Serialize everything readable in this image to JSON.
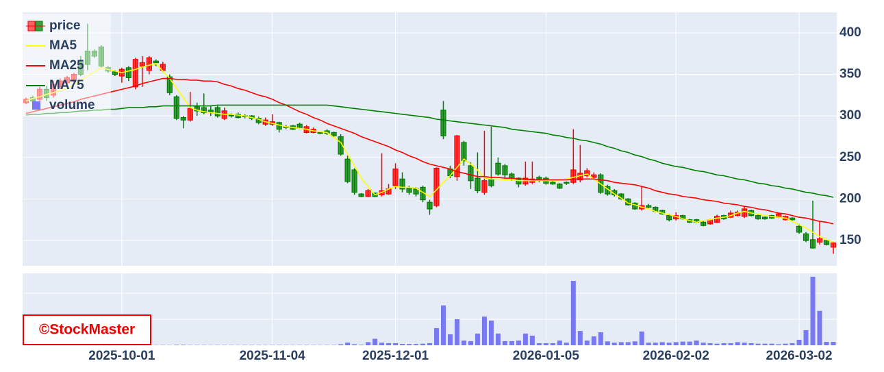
{
  "chart_data": {
    "type": "candlestick",
    "name": "price",
    "categories": [
      null,
      null,
      null,
      null,
      null,
      null,
      null,
      null,
      null,
      null,
      null,
      null,
      null,
      null,
      "2025-10-01",
      null,
      null,
      null,
      null,
      null,
      null,
      null,
      null,
      null,
      null,
      null,
      null,
      null,
      null,
      null,
      null,
      null,
      null,
      null,
      null,
      null,
      "2025-11-04",
      null,
      null,
      null,
      null,
      null,
      null,
      null,
      null,
      null,
      null,
      null,
      null,
      null,
      null,
      null,
      null,
      null,
      "2025-12-01",
      null,
      null,
      null,
      null,
      null,
      null,
      null,
      null,
      null,
      null,
      null,
      null,
      null,
      null,
      null,
      null,
      null,
      null,
      null,
      null,
      null,
      "2026-01-05",
      null,
      null,
      null,
      null,
      null,
      null,
      null,
      null,
      null,
      null,
      null,
      null,
      null,
      null,
      null,
      null,
      null,
      null,
      "2026-02-02",
      null,
      null,
      null,
      null,
      null,
      null,
      null,
      null,
      null,
      null,
      null,
      null,
      null,
      null,
      null,
      null,
      null,
      "2026-03-02",
      null,
      null,
      null,
      null,
      null
    ],
    "open": [
      316,
      322,
      320,
      332,
      325,
      335,
      340,
      343,
      367,
      378,
      378,
      383,
      358,
      353,
      348,
      358,
      335,
      360,
      355,
      366,
      355,
      347,
      323,
      298,
      295,
      311,
      310,
      307,
      310,
      297,
      301,
      302,
      300,
      300,
      297,
      290,
      290,
      292,
      287,
      288,
      290,
      280,
      280,
      280,
      282,
      280,
      275,
      248,
      235,
      206,
      203,
      207,
      205,
      206,
      216,
      224,
      213,
      212,
      214,
      196,
      192,
      307,
      236,
      227,
      268,
      240,
      225,
      208,
      224,
      243,
      240,
      230,
      225,
      218,
      220,
      226,
      225,
      220,
      218,
      220,
      220,
      223,
      228,
      226,
      229,
      215,
      210,
      206,
      200,
      195,
      188,
      192,
      190,
      186,
      180,
      176,
      180,
      175,
      175,
      172,
      170,
      172,
      180,
      178,
      180,
      179,
      186,
      180,
      178,
      180,
      178,
      175,
      177,
      167,
      158,
      151,
      148,
      150,
      142
    ],
    "high": [
      322,
      324,
      335,
      336,
      342,
      345,
      348,
      352,
      372,
      411,
      380,
      385,
      360,
      355,
      358,
      360,
      370,
      372,
      372,
      368,
      365,
      350,
      325,
      300,
      329,
      316,
      327,
      312,
      312,
      310,
      303,
      304,
      302,
      301,
      299,
      298,
      302,
      293,
      289,
      289,
      292,
      289,
      286,
      281,
      284,
      281,
      278,
      252,
      237,
      207,
      212,
      208,
      255,
      218,
      243,
      232,
      216,
      214,
      216,
      199,
      238,
      318,
      240,
      277,
      270,
      244,
      256,
      282,
      287,
      250,
      242,
      232,
      226,
      245,
      245,
      228,
      227,
      222,
      219,
      221,
      284,
      265,
      237,
      232,
      231,
      217,
      212,
      207,
      201,
      196,
      216,
      194,
      191,
      187,
      182,
      184,
      181,
      176,
      176,
      174,
      176,
      181,
      181,
      186,
      186,
      191,
      187,
      181,
      179,
      181,
      183,
      180,
      178,
      170,
      160,
      198,
      173,
      151,
      148
    ],
    "low": [
      314,
      316,
      318,
      318,
      322,
      333,
      338,
      340,
      348,
      355,
      370,
      358,
      352,
      348,
      340,
      342,
      332,
      335,
      350,
      360,
      353,
      325,
      295,
      285,
      293,
      300,
      302,
      300,
      298,
      295,
      298,
      297,
      297,
      295,
      290,
      288,
      288,
      280,
      284,
      283,
      284,
      279,
      279,
      278,
      277,
      275,
      252,
      219,
      205,
      202,
      202,
      202,
      203,
      205,
      212,
      208,
      205,
      203,
      196,
      181,
      190,
      272,
      225,
      222,
      240,
      212,
      207,
      205,
      214,
      228,
      225,
      222,
      214,
      216,
      218,
      220,
      217,
      217,
      212,
      217,
      218,
      220,
      226,
      224,
      206,
      204,
      203,
      199,
      192,
      187,
      186,
      189,
      184,
      181,
      173,
      174,
      175,
      171,
      171,
      167,
      169,
      171,
      175,
      177,
      179,
      177,
      179,
      175,
      175,
      176,
      177,
      174,
      174,
      158,
      148,
      140,
      145,
      144,
      134
    ],
    "close": [
      320,
      318,
      332,
      322,
      338,
      342,
      346,
      350,
      350,
      362,
      372,
      360,
      354,
      350,
      356,
      346,
      368,
      364,
      370,
      364,
      362,
      328,
      297,
      295,
      309,
      306,
      304,
      305,
      300,
      306,
      300,
      298,
      299,
      297,
      292,
      295,
      293,
      284,
      286,
      284,
      285,
      287,
      284,
      279,
      279,
      276,
      254,
      221,
      208,
      203,
      210,
      203,
      210,
      212,
      236,
      212,
      208,
      206,
      199,
      188,
      237,
      276,
      228,
      276,
      246,
      222,
      210,
      222,
      216,
      230,
      229,
      225,
      218,
      225,
      224,
      222,
      219,
      218,
      213,
      219,
      235,
      231,
      234,
      229,
      208,
      206,
      205,
      200,
      193,
      188,
      192,
      190,
      185,
      182,
      175,
      180,
      176,
      172,
      172,
      168,
      175,
      179,
      176,
      183,
      184,
      188,
      180,
      176,
      176,
      177,
      182,
      179,
      175,
      160,
      150,
      141,
      152,
      145,
      147
    ],
    "increasing_color": "#ff0000",
    "decreasing_color": "#008000",
    "ylim": [
      119.5,
      424.7
    ],
    "yticks": [
      150,
      200,
      250,
      300,
      350,
      400
    ],
    "grid": true,
    "legend": "top-left",
    "series": [
      {
        "name": "MA5",
        "color": "#ffff00",
        "values": [
          318,
          321,
          323,
          326,
          328,
          331,
          333,
          338,
          343,
          348,
          353,
          358,
          356,
          354,
          352,
          354,
          356,
          359,
          361,
          363,
          354,
          345,
          333,
          322,
          310,
          307,
          305,
          304,
          303,
          302,
          302,
          301,
          300,
          298,
          296,
          293,
          291,
          289,
          287,
          286,
          285,
          284,
          282,
          281,
          280,
          274,
          268,
          254,
          240,
          225,
          215,
          205,
          208,
          212,
          215,
          214,
          214,
          213,
          208,
          203,
          211,
          220,
          228,
          238,
          248,
          242,
          235,
          225,
          224,
          224,
          223,
          223,
          222,
          222,
          222,
          222,
          222,
          222,
          222,
          224,
          226,
          228,
          230,
          224,
          218,
          212,
          206,
          201,
          195,
          193,
          190,
          188,
          185,
          183,
          181,
          179,
          176,
          174,
          172,
          174,
          175,
          177,
          178,
          180,
          183,
          185,
          183,
          182,
          180,
          179,
          178,
          177,
          173,
          169,
          165,
          160,
          155,
          151,
          148
        ]
      },
      {
        "name": "MA25",
        "color": "#ff0000",
        "values": [
          303,
          305,
          307,
          309,
          311,
          313,
          315,
          317,
          320,
          322,
          324,
          326,
          328,
          330,
          332,
          334,
          336,
          339,
          341,
          343,
          345,
          345,
          344,
          344,
          343,
          343,
          342,
          342,
          341,
          338,
          336,
          333,
          331,
          328,
          325,
          323,
          320,
          316,
          313,
          309,
          305,
          302,
          298,
          295,
          291,
          288,
          285,
          282,
          279,
          275,
          272,
          269,
          266,
          263,
          259,
          256,
          252,
          249,
          245,
          242,
          240,
          238,
          236,
          233,
          231,
          229,
          227,
          227,
          226,
          226,
          225,
          225,
          224,
          224,
          223,
          223,
          223,
          223,
          223,
          223,
          224,
          224,
          224,
          224,
          223,
          222,
          220,
          219,
          218,
          217,
          215,
          213,
          210,
          208,
          206,
          205,
          203,
          202,
          201,
          199,
          198,
          197,
          195,
          194,
          193,
          191,
          190,
          188,
          187,
          185,
          183,
          182,
          180,
          178,
          177,
          175,
          173,
          172,
          170
        ]
      },
      {
        "name": "MA75",
        "color": "#008000",
        "values": [
          301,
          302,
          302,
          303,
          303,
          304,
          304,
          305,
          306,
          306,
          307,
          307,
          308,
          308,
          309,
          310,
          310,
          310,
          311,
          311,
          312,
          312,
          312,
          312,
          312,
          312,
          312,
          312,
          313,
          313,
          313,
          313,
          313,
          313,
          313,
          313,
          313,
          313,
          313,
          313,
          313,
          313,
          313,
          313,
          313,
          312,
          311,
          310,
          309,
          308,
          307,
          306,
          305,
          304,
          303,
          302,
          301,
          300,
          299,
          298,
          296,
          295,
          294,
          293,
          292,
          291,
          290,
          289,
          288,
          287,
          286,
          284,
          283,
          282,
          281,
          280,
          279,
          277,
          276,
          274,
          273,
          271,
          270,
          268,
          266,
          263,
          261,
          258,
          256,
          253,
          251,
          248,
          246,
          243,
          241,
          239,
          238,
          236,
          234,
          233,
          231,
          229,
          228,
          226,
          224,
          223,
          221,
          219,
          218,
          216,
          215,
          213,
          212,
          210,
          208,
          207,
          205,
          204,
          202
        ]
      }
    ],
    "volume": {
      "name": "volume",
      "color": "#7878f0",
      "ylim": [
        0,
        2.76
      ],
      "values": [
        0.01,
        0.01,
        0.01,
        0.01,
        0.01,
        0.01,
        0.01,
        0.01,
        0.01,
        0.01,
        0.01,
        0.01,
        0.01,
        0.01,
        0.01,
        0.01,
        0.01,
        0.01,
        0.01,
        0.01,
        0.01,
        0.01,
        0.02,
        0.02,
        0.01,
        0.01,
        0.01,
        0.01,
        0.01,
        0.01,
        0.01,
        0.01,
        0.01,
        0.01,
        0.01,
        0.01,
        0.01,
        0.01,
        0.01,
        0.01,
        0.01,
        0.01,
        0.01,
        0.01,
        0.01,
        0.01,
        0.04,
        0.1,
        0.04,
        0.02,
        0.12,
        0.25,
        0.1,
        0.08,
        0.08,
        0.05,
        0.05,
        0.05,
        0.06,
        0.08,
        0.66,
        1.53,
        0.42,
        1.0,
        0.18,
        0.16,
        0.45,
        1.1,
        0.95,
        0.45,
        0.16,
        0.16,
        0.18,
        0.45,
        0.37,
        0.08,
        0.08,
        0.08,
        0.18,
        0.1,
        2.47,
        0.55,
        0.18,
        0.34,
        0.5,
        0.15,
        0.1,
        0.12,
        0.12,
        0.15,
        0.53,
        0.1,
        0.1,
        0.12,
        0.1,
        0.12,
        0.14,
        0.14,
        0.18,
        0.1,
        0.08,
        0.06,
        0.08,
        0.08,
        0.12,
        0.1,
        0.08,
        0.06,
        0.06,
        0.06,
        0.04,
        0.06,
        0.08,
        0.21,
        0.58,
        2.63,
        1.32,
        0.13,
        0.13
      ]
    },
    "watermark": "©StockMaster"
  }
}
